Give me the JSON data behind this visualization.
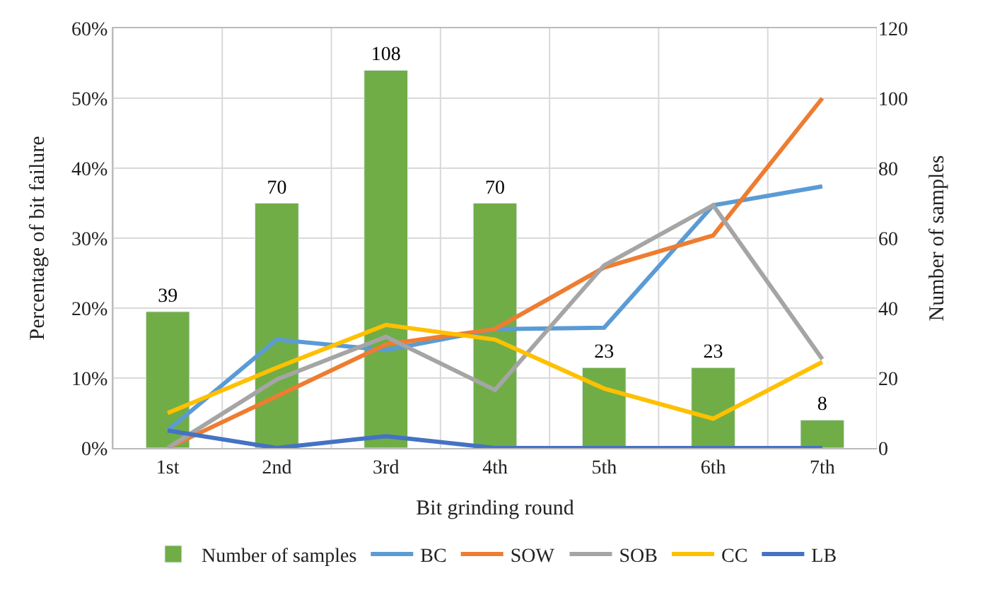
{
  "chart_data": {
    "type": "line",
    "xlabel": "Bit grinding round",
    "ylabel": "Percentage of bit failure",
    "y2label": "Number of samples",
    "categories": [
      "1st",
      "2nd",
      "3rd",
      "4th",
      "5th",
      "6th",
      "7th"
    ],
    "series": [
      {
        "name": "Number of samples",
        "type": "bar",
        "axis": "y2",
        "color": "#70ad47",
        "values": [
          39,
          70,
          108,
          70,
          23,
          23,
          8
        ],
        "data_labels": true
      },
      {
        "name": "BC",
        "color": "#5b9bd5",
        "values": [
          2.5,
          15.5,
          14,
          17,
          17.2,
          34.7,
          37.4
        ]
      },
      {
        "name": "SOW",
        "color": "#ed7d31",
        "values": [
          0,
          7.4,
          14.8,
          17,
          25.8,
          30.4,
          50
        ]
      },
      {
        "name": "SOB",
        "color": "#a5a5a5",
        "values": [
          0,
          9.8,
          15.9,
          8.3,
          26.1,
          34.7,
          12.7
        ]
      },
      {
        "name": "CC",
        "color": "#ffc000",
        "values": [
          5,
          11.5,
          17.6,
          15.5,
          8.5,
          4.2,
          12.3
        ]
      },
      {
        "name": "LB",
        "color": "#4472c4",
        "values": [
          2.5,
          0,
          1.7,
          0,
          0,
          0,
          0
        ]
      }
    ],
    "ylim": [
      0,
      60
    ],
    "yticks": [
      {
        "value": 0,
        "label": "0%"
      },
      {
        "value": 10,
        "label": "10%"
      },
      {
        "value": 20,
        "label": "20%"
      },
      {
        "value": 30,
        "label": "30%"
      },
      {
        "value": 40,
        "label": "40%"
      },
      {
        "value": 50,
        "label": "50%"
      },
      {
        "value": 60,
        "label": "60%"
      }
    ],
    "y2lim": [
      0,
      120
    ],
    "y2ticks": [
      0,
      20,
      40,
      60,
      80,
      100,
      120
    ],
    "grid": true,
    "legend": "bottom",
    "marker": "none",
    "line_style": "solid"
  }
}
